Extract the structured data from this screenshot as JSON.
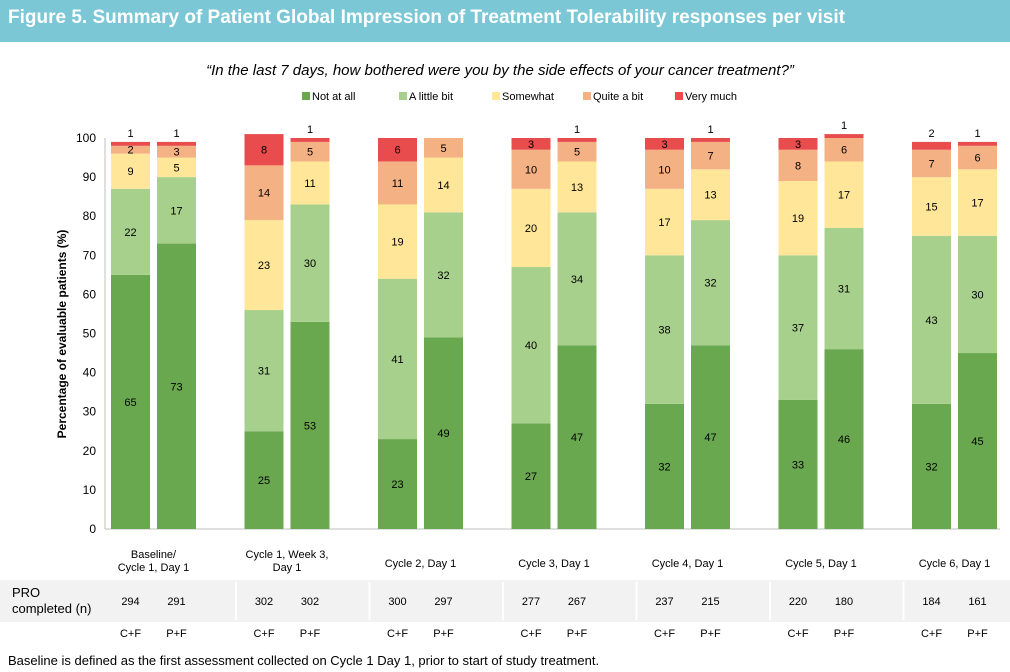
{
  "figure_title": "Figure 5. Summary of Patient Global Impression of Treatment Tolerability responses per visit",
  "footnote": "Baseline is defined as the first assessment collected on Cycle 1 Day 1, prior to start of study treatment.",
  "pro_label": [
    "PRO",
    "completed (n)"
  ],
  "colors": {
    "Not at all": "#6aa84f",
    "A little bit": "#a8d08d",
    "Somewhat": "#ffe699",
    "Quite a bit": "#f4b183",
    "Very much": "#e84c4c",
    "title_bar": "#7bc7d6",
    "pro_row": "#f2f2f2"
  },
  "chart_data": {
    "type": "bar",
    "stacked": true,
    "title": "“In the last 7 days, how bothered were you by the side effects of your cancer treatment?”",
    "ylabel": "Percentage of evaluable patients (%)",
    "ylim": [
      0,
      100
    ],
    "yticks": [
      0,
      10,
      20,
      30,
      40,
      50,
      60,
      70,
      80,
      90,
      100
    ],
    "legend_position": "top-center",
    "categories": [
      "Not at all",
      "A little bit",
      "Somewhat",
      "Quite a bit",
      "Very much"
    ],
    "visits": [
      {
        "label": [
          "Baseline/",
          "Cycle 1, Day 1"
        ],
        "bars": [
          {
            "arm": "C+F",
            "n": "294",
            "values": [
              65,
              22,
              9,
              2,
              1
            ]
          },
          {
            "arm": "P+F",
            "n": "291",
            "values": [
              73,
              17,
              5,
              3,
              1
            ]
          }
        ]
      },
      {
        "label": [
          "Cycle 1, Week 3,",
          "Day 1"
        ],
        "bars": [
          {
            "arm": "C+F",
            "n": "302",
            "values": [
              25,
              31,
              23,
              14,
              8
            ]
          },
          {
            "arm": "P+F",
            "n": "302",
            "values": [
              53,
              30,
              11,
              5,
              1
            ]
          }
        ]
      },
      {
        "label": [
          "Cycle 2, Day 1"
        ],
        "bars": [
          {
            "arm": "C+F",
            "n": "300",
            "values": [
              23,
              41,
              19,
              11,
              6
            ]
          },
          {
            "arm": "P+F",
            "n": "297",
            "values": [
              49,
              32,
              14,
              5,
              0
            ]
          }
        ]
      },
      {
        "label": [
          "Cycle 3, Day 1"
        ],
        "bars": [
          {
            "arm": "C+F",
            "n": "277",
            "values": [
              27,
              40,
              20,
              10,
              3
            ]
          },
          {
            "arm": "P+F",
            "n": "267",
            "values": [
              47,
              34,
              13,
              5,
              1
            ]
          }
        ]
      },
      {
        "label": [
          "Cycle 4, Day 1"
        ],
        "bars": [
          {
            "arm": "C+F",
            "n": "237",
            "values": [
              32,
              38,
              17,
              10,
              3
            ]
          },
          {
            "arm": "P+F",
            "n": "215",
            "values": [
              47,
              32,
              13,
              7,
              1
            ]
          }
        ]
      },
      {
        "label": [
          "Cycle 5, Day 1"
        ],
        "bars": [
          {
            "arm": "C+F",
            "n": "220",
            "values": [
              33,
              37,
              19,
              8,
              3
            ]
          },
          {
            "arm": "P+F",
            "n": "180",
            "values": [
              46,
              31,
              17,
              6,
              1
            ]
          }
        ]
      },
      {
        "label": [
          "Cycle 6, Day 1"
        ],
        "bars": [
          {
            "arm": "C+F",
            "n": "184",
            "values": [
              32,
              43,
              15,
              7,
              2
            ]
          },
          {
            "arm": "P+F",
            "n": "161",
            "values": [
              45,
              30,
              17,
              6,
              1
            ]
          }
        ]
      }
    ]
  }
}
